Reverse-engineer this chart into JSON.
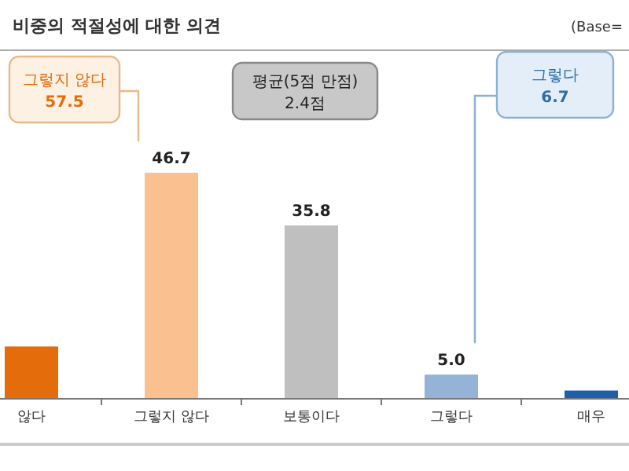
{
  "chart_data": {
    "type": "bar",
    "title": "비중의 적절성에 대한 의견",
    "categories": [
      "않다",
      "그렇지 않다",
      "보통이다",
      "그렇다",
      "매우"
    ],
    "values": [
      10.8,
      46.7,
      35.8,
      5.0,
      1.7
    ],
    "colors": [
      "#e46c0a",
      "#fac090",
      "#bfbfbf",
      "#95b3d7",
      "#1f5fa8"
    ],
    "value_labels": [
      null,
      "46.7",
      "35.8",
      "5.0",
      null
    ],
    "annotations": [
      "(Base=",
      "그렇지 않다\n57.5",
      "평균(5점 만점)\n2.4점",
      "그렇다\n6.7"
    ]
  }
}
